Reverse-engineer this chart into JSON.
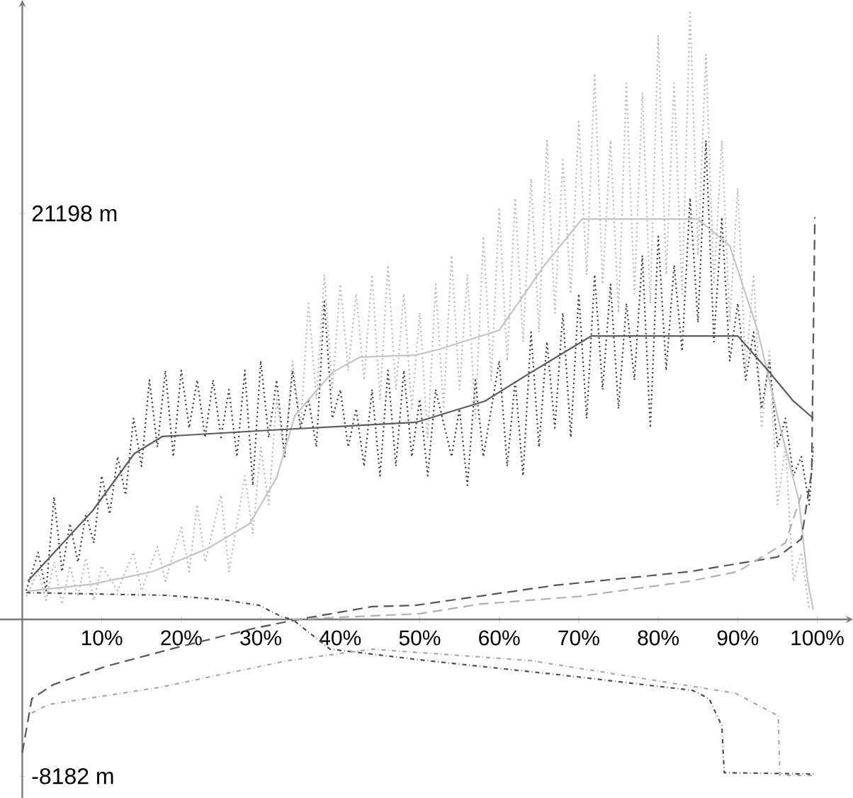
{
  "chart_data": {
    "type": "line",
    "xlim": [
      -2.8,
      104.5
    ],
    "ylim": [
      -9320,
      32340
    ],
    "xticks": [
      {
        "value": 10,
        "label": "10%"
      },
      {
        "value": 20,
        "label": "20%"
      },
      {
        "value": 30,
        "label": "30%"
      },
      {
        "value": 40,
        "label": "40%"
      },
      {
        "value": 50,
        "label": "50%"
      },
      {
        "value": 60,
        "label": "60%"
      },
      {
        "value": 70,
        "label": "70%"
      },
      {
        "value": 80,
        "label": "80%"
      },
      {
        "value": 90,
        "label": "90%"
      },
      {
        "value": 100,
        "label": "100%"
      }
    ],
    "yticks": [
      {
        "value": -8182,
        "label": "-8182 m"
      },
      {
        "value": 21198,
        "label": "21198 m"
      }
    ],
    "series": [
      {
        "color": "#bbbbbb",
        "line_style": "dotted",
        "x": [
          0.5,
          2,
          3,
          4,
          5,
          6,
          7,
          8,
          9,
          10,
          12,
          14,
          15,
          17,
          18,
          20,
          21,
          22,
          23,
          25,
          26,
          28,
          29,
          30,
          31,
          32,
          33,
          34,
          35,
          36,
          37,
          38,
          39,
          40,
          41,
          42,
          43,
          44,
          45,
          46,
          47,
          48,
          49,
          50,
          51,
          52,
          53,
          54,
          55,
          56,
          57,
          58,
          59,
          60,
          61,
          62,
          63,
          64,
          65,
          66,
          67,
          68,
          69,
          70,
          71,
          72,
          73,
          74,
          75,
          76,
          77,
          78,
          79,
          80,
          81,
          82,
          83,
          84,
          85,
          86,
          87,
          88,
          89,
          90,
          91,
          92,
          93,
          94,
          95,
          96,
          97,
          98,
          99
        ],
        "values": [
          1200,
          2500,
          1000,
          3000,
          800,
          2800,
          1200,
          3200,
          1000,
          2800,
          1500,
          3500,
          1500,
          3800,
          2000,
          4800,
          2500,
          6000,
          3000,
          6500,
          2500,
          7500,
          4500,
          9000,
          6000,
          11500,
          8500,
          13500,
          10000,
          16500,
          11500,
          18000,
          12000,
          17500,
          13000,
          17000,
          12500,
          18000,
          11500,
          18500,
          12000,
          17000,
          11000,
          16000,
          9500,
          17500,
          11000,
          19000,
          12000,
          18000,
          10500,
          20000,
          12500,
          21500,
          13500,
          22000,
          14500,
          23000,
          15000,
          25000,
          16000,
          24000,
          17000,
          26000,
          18000,
          28500,
          17500,
          25000,
          16000,
          28000,
          17000,
          27500,
          16500,
          30500,
          18000,
          28000,
          17000,
          31800,
          19000,
          29500,
          17500,
          25000,
          15500,
          22500,
          13000,
          18000,
          10000,
          14000,
          6000,
          9000,
          2000,
          3500,
          500
        ]
      },
      {
        "color": "#444444",
        "line_style": "dotted",
        "x": [
          0.5,
          2,
          3,
          4,
          5,
          6,
          7,
          8,
          9,
          10,
          11,
          12,
          13,
          14,
          15,
          16,
          17,
          18,
          19,
          20,
          21,
          22,
          23,
          24,
          25,
          26,
          27,
          28,
          29,
          30,
          31,
          32,
          33,
          34,
          35,
          36,
          37,
          38,
          39,
          40,
          41,
          42,
          43,
          44,
          45,
          46,
          47,
          48,
          49,
          50,
          51,
          52,
          54,
          55,
          56,
          57,
          58,
          60,
          61,
          62,
          63,
          64,
          65,
          66,
          67,
          68,
          69,
          70,
          71,
          72,
          73,
          74,
          75,
          76,
          77,
          78,
          79,
          80,
          81,
          82,
          83,
          84,
          85,
          86,
          87,
          88,
          89,
          90,
          91,
          92,
          93,
          94,
          95,
          96,
          97,
          98,
          99,
          99.5
        ],
        "values": [
          1500,
          3500,
          1500,
          6400,
          2500,
          5000,
          3000,
          5500,
          4000,
          7500,
          5500,
          8500,
          6500,
          10500,
          8000,
          12500,
          9000,
          13000,
          8500,
          13000,
          10000,
          12500,
          9500,
          12500,
          9500,
          12000,
          8500,
          13000,
          7000,
          13500,
          9500,
          12500,
          8500,
          13000,
          10000,
          11500,
          9000,
          16600,
          10500,
          12000,
          9000,
          11000,
          8000,
          12000,
          7500,
          13000,
          8000,
          13000,
          8500,
          11500,
          7500,
          12000,
          8500,
          11000,
          7000,
          12500,
          8500,
          13500,
          8000,
          12500,
          7500,
          15000,
          9000,
          14500,
          10000,
          16000,
          9500,
          17000,
          10500,
          18000,
          12000,
          17500,
          11000,
          16500,
          12500,
          19000,
          10000,
          20000,
          13000,
          18500,
          14000,
          22000,
          15500,
          25000,
          14500,
          21000,
          13500,
          16500,
          12500,
          15000,
          11000,
          13500,
          9000,
          10500,
          7500,
          8500,
          6000,
          9000
        ]
      },
      {
        "color": "#c4c4c4",
        "line_style": "solid",
        "x": [
          0.7,
          8.9,
          16.4,
          23.3,
          28.6,
          32,
          34.3,
          39,
          42.5,
          49.5,
          52.4,
          60,
          65.7,
          70.4,
          85,
          89,
          92.5,
          95.3,
          97.7,
          98.8,
          99.5
        ],
        "values": [
          1480,
          1850,
          2500,
          3700,
          5000,
          7400,
          10650,
          12900,
          13700,
          13800,
          14100,
          15100,
          18500,
          20900,
          20900,
          19500,
          15100,
          10100,
          6200,
          2000,
          500
        ]
      },
      {
        "color": "#5c5c5c",
        "line_style": "solid",
        "x": [
          0.7,
          8.9,
          14.1,
          17.6,
          32,
          49.5,
          58.2,
          64,
          71.6,
          90,
          93.6,
          97,
          99.5
        ],
        "values": [
          2000,
          5700,
          8660,
          9550,
          9900,
          10290,
          11400,
          12900,
          14800,
          14800,
          13100,
          11400,
          10500
        ]
      },
      {
        "color": "#555555",
        "line_style": "dashed",
        "x": [
          0,
          1.2,
          3.9,
          10.6,
          19.3,
          29.4,
          34.7,
          44,
          49.5,
          67,
          84,
          95,
          98,
          99.3,
          99.7
        ],
        "values": [
          -6960,
          -4140,
          -3400,
          -2440,
          -1480,
          -440,
          0,
          670,
          740,
          1780,
          2500,
          3260,
          4200,
          7700,
          21000
        ]
      },
      {
        "color": "#b0b0b0",
        "line_style": "dashed",
        "x": [
          34,
          50,
          57.5,
          70,
          84,
          90,
          96,
          98
        ],
        "values": [
          0,
          300,
          800,
          1200,
          2000,
          2500,
          4000,
          6500
        ]
      },
      {
        "color": "#4c4c4c",
        "line_style": "dashdot",
        "x": [
          0.5,
          18,
          25,
          29.8,
          32.6,
          34,
          38.7,
          50.9,
          67.6,
          84.3,
          86.4,
          88,
          88.3,
          99.7
        ],
        "values": [
          1400,
          1260,
          1040,
          740,
          150,
          0,
          -1550,
          -2150,
          -2890,
          -3700,
          -4140,
          -5550,
          -8000,
          -8070
        ]
      },
      {
        "color": "#a8a8a8",
        "line_style": "dashdot",
        "x": [
          1.2,
          3.3,
          17.2,
          33.4,
          44,
          64,
          89.7,
          95.1,
          95.3,
          99.7
        ],
        "values": [
          -4880,
          -4440,
          -3550,
          -2150,
          -1550,
          -2150,
          -3850,
          -5030,
          -8140,
          -8140
        ]
      }
    ]
  }
}
